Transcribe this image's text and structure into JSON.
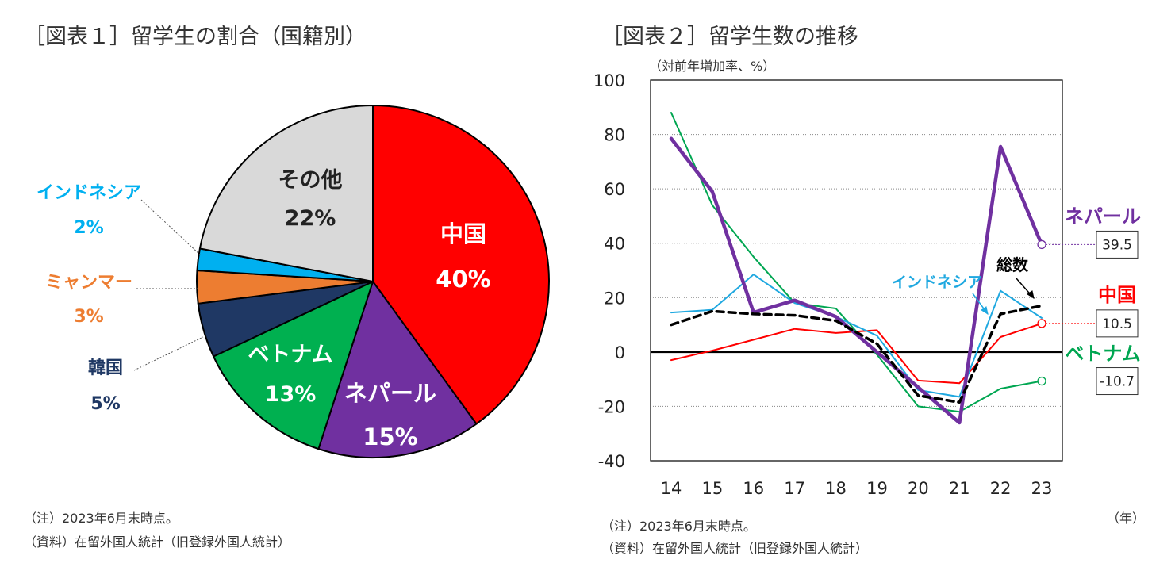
{
  "fig1": {
    "title": "［図表１］留学生の割合（国籍別）",
    "note": "（注）2023年6月末時点。",
    "source": "（資料）在留外国人統計（旧登録外国人統計）"
  },
  "fig2": {
    "title": "［図表２］留学生数の推移",
    "unit": "（対前年増加率、%）",
    "year_unit": "（年）",
    "note": "（注）2023年6月末時点。",
    "source": "（資料）在留外国人統計（旧登録外国人統計）"
  },
  "chart_data": [
    {
      "type": "pie",
      "slices": [
        {
          "label": "中国",
          "value": 40,
          "pct_label": "40%",
          "color": "#ff0000"
        },
        {
          "label": "ネパール",
          "value": 15,
          "pct_label": "15%",
          "color": "#7030a0"
        },
        {
          "label": "ベトナム",
          "value": 13,
          "pct_label": "13%",
          "color": "#00b050"
        },
        {
          "label": "韓国",
          "value": 5,
          "pct_label": "5%",
          "color": "#1f3864"
        },
        {
          "label": "ミャンマー",
          "value": 3,
          "pct_label": "3%",
          "color": "#ed7d31"
        },
        {
          "label": "インドネシア",
          "value": 2,
          "pct_label": "2%",
          "color": "#00b0f0"
        },
        {
          "label": "その他",
          "value": 22,
          "pct_label": "22%",
          "color": "#d9d9d9"
        }
      ]
    },
    {
      "type": "line",
      "x": [
        "14",
        "15",
        "16",
        "17",
        "18",
        "19",
        "20",
        "21",
        "22",
        "23"
      ],
      "ylim": [
        -40,
        100
      ],
      "yticks": [
        -40,
        -20,
        0,
        20,
        40,
        60,
        80,
        100
      ],
      "grid": true,
      "series": [
        {
          "name": "ベトナム",
          "color": "#00a651",
          "values": [
            88,
            54,
            35,
            18,
            16,
            -1,
            -20,
            -22,
            -13.5,
            -10.7
          ],
          "end_label": "-10.7"
        },
        {
          "name": "中国",
          "color": "#ff0000",
          "values": [
            -3,
            0.5,
            4.5,
            8.5,
            7,
            8,
            -10.5,
            -11.5,
            5.5,
            10.5
          ],
          "end_label": "10.5"
        },
        {
          "name": "インドネシア",
          "color": "#1fa8e0",
          "values": [
            14.5,
            15.5,
            28.5,
            18,
            13,
            6,
            -14,
            -16.5,
            22.5,
            12.5
          ]
        },
        {
          "name": "ネパール",
          "color": "#7030a0",
          "values": [
            78.5,
            59,
            14.5,
            19,
            13,
            0,
            -13,
            -26,
            75.5,
            39.5
          ],
          "end_label": "39.5"
        },
        {
          "name": "総数",
          "color": "#000000",
          "dashed": true,
          "values": [
            10,
            15,
            14,
            13.5,
            11.5,
            3,
            -16,
            -18.5,
            14,
            17
          ]
        }
      ]
    }
  ]
}
